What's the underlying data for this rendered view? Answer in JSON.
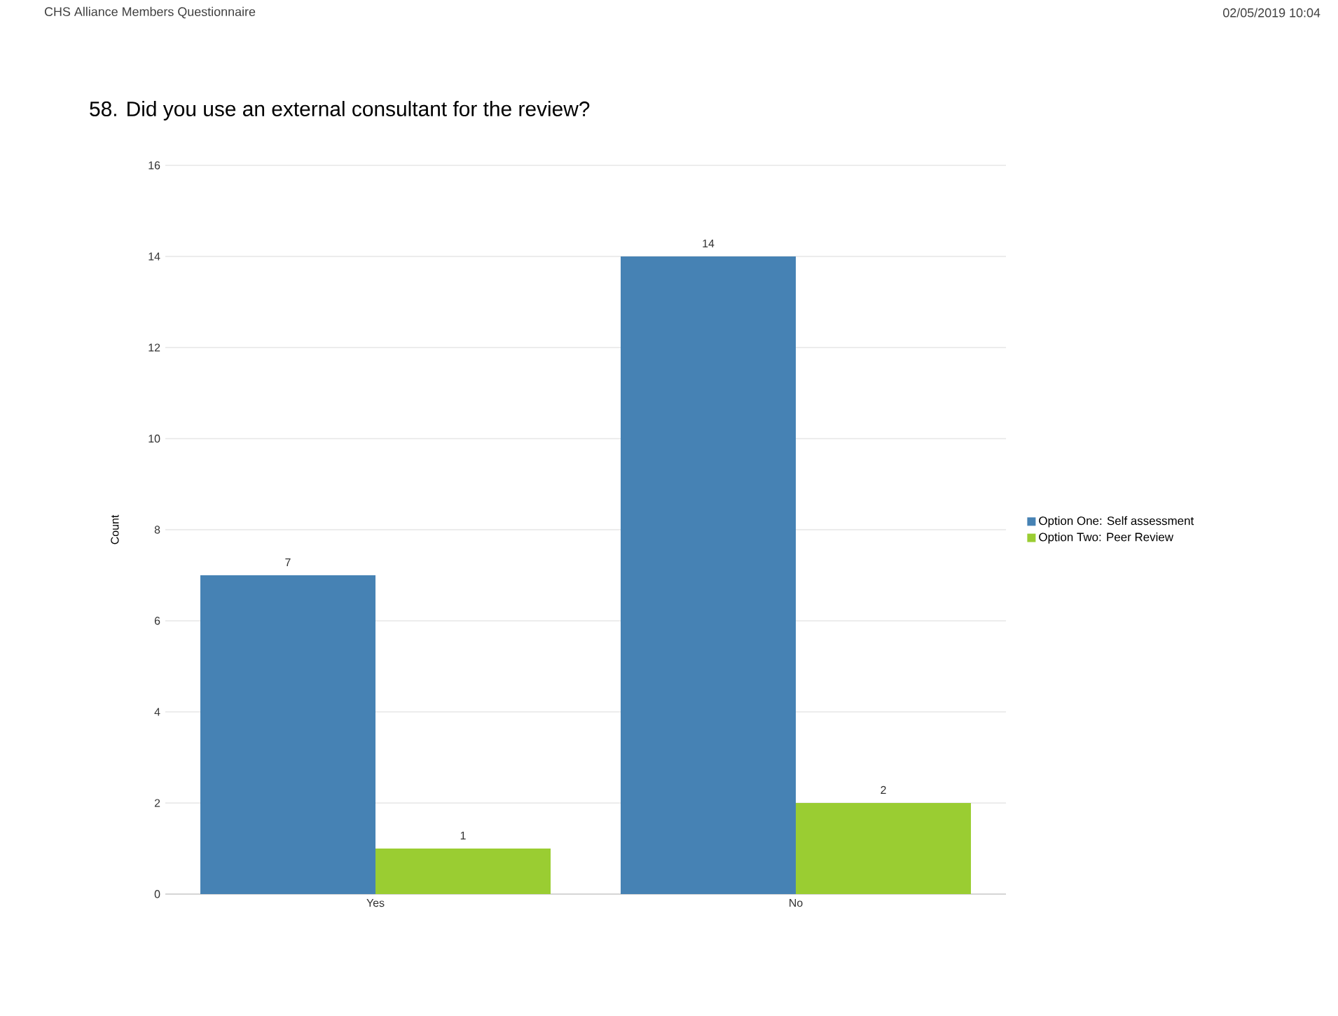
{
  "chart_data": {
    "type": "bar",
    "title": "58. Did you use an external consultant for the review?",
    "ylabel": "Count",
    "annotations": [
      "CHS Alliance Members Questionnaire",
      "02/05/2019 10:04"
    ],
    "categories": [
      "Yes",
      "No"
    ],
    "series": [
      {
        "name": "Option One: Self assessment",
        "color": "#4682b4",
        "values": [
          7,
          14
        ]
      },
      {
        "name": "Option Two: Peer Review",
        "color": "#9acd32",
        "values": [
          1,
          2
        ]
      }
    ],
    "ylim": [
      0,
      16
    ],
    "yticks": [
      0,
      2,
      4,
      6,
      8,
      10,
      12,
      14,
      16
    ],
    "grid": "y",
    "legend": "right",
    "data_labels": true
  }
}
